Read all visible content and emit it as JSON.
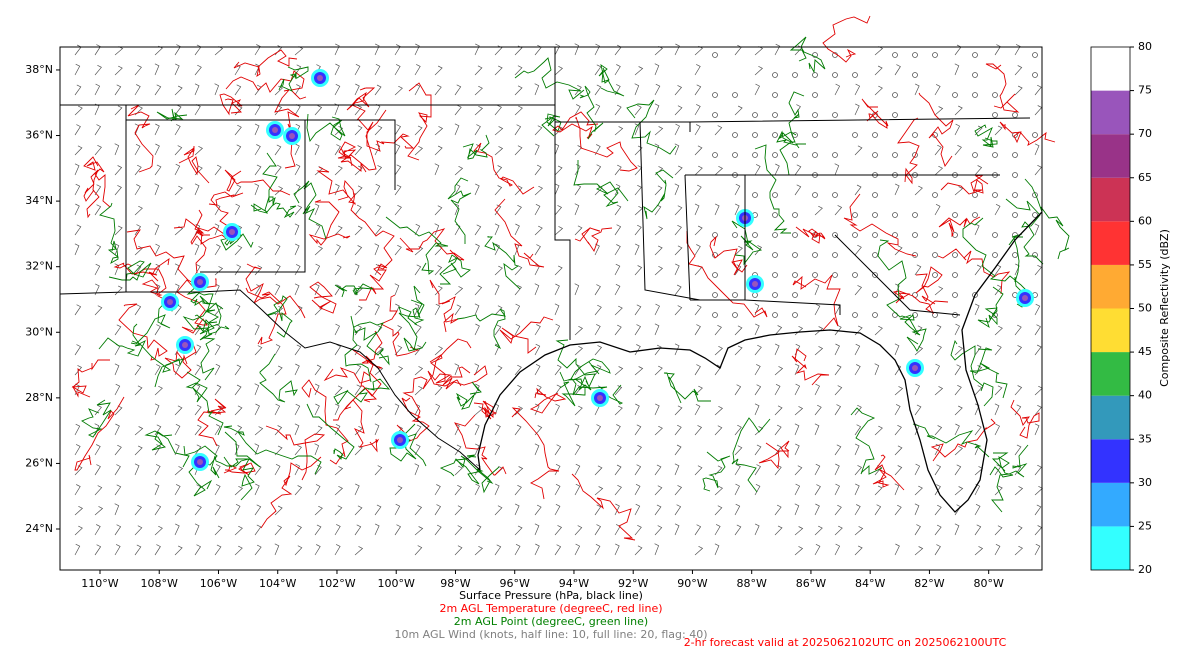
{
  "map": {
    "xlim": [
      -111.35,
      -78.2
    ],
    "ylim": [
      22.75,
      38.7
    ],
    "xticks": [
      {
        "value": -110,
        "label": "110°W"
      },
      {
        "value": -108,
        "label": "108°W"
      },
      {
        "value": -106,
        "label": "106°W"
      },
      {
        "value": -104,
        "label": "104°W"
      },
      {
        "value": -102,
        "label": "102°W"
      },
      {
        "value": -100,
        "label": "100°W"
      },
      {
        "value": -98,
        "label": "98°W"
      },
      {
        "value": -96,
        "label": "96°W"
      },
      {
        "value": -94,
        "label": "94°W"
      },
      {
        "value": -92,
        "label": "92°W"
      },
      {
        "value": -90,
        "label": "90°W"
      },
      {
        "value": -88,
        "label": "88°W"
      },
      {
        "value": -86,
        "label": "86°W"
      },
      {
        "value": -84,
        "label": "84°W"
      },
      {
        "value": -82,
        "label": "82°W"
      },
      {
        "value": -80,
        "label": "80°W"
      }
    ],
    "yticks": [
      {
        "value": 24,
        "label": "24°N"
      },
      {
        "value": 26,
        "label": "26°N"
      },
      {
        "value": 28,
        "label": "28°N"
      },
      {
        "value": 30,
        "label": "30°N"
      },
      {
        "value": 32,
        "label": "32°N"
      },
      {
        "value": 34,
        "label": "34°N"
      },
      {
        "value": 36,
        "label": "36°N"
      },
      {
        "value": 38,
        "label": "38°N"
      }
    ]
  },
  "colorbar": {
    "label": "Composite Reflectivity (dBZ)",
    "ticks": [
      20,
      25,
      30,
      35,
      40,
      45,
      50,
      55,
      60,
      65,
      70,
      75,
      80
    ],
    "colors": [
      "#33ffff",
      "#33aaff",
      "#3333ff",
      "#3399bb",
      "#33bb44",
      "#ffdd33",
      "#ffaa33",
      "#ff3333",
      "#cc3355",
      "#993388",
      "#9955bb",
      "#ffffff"
    ]
  },
  "captions": [
    {
      "text": "Surface Pressure (hPa, black line)",
      "color": "#000000"
    },
    {
      "text": "2m AGL Temperature (degreeC, red line)",
      "color": "#ff0000"
    },
    {
      "text": "2m AGL Point (degreeC, green line)",
      "color": "#008000"
    },
    {
      "text": "10m AGL Wind (knots, half line: 10, full line: 20, flag: 40)",
      "color": "#808080"
    }
  ],
  "forecast": {
    "text": "2-hr forecast valid at 2025062102UTC on 2025062100UTC",
    "color": "#ff0000"
  }
}
